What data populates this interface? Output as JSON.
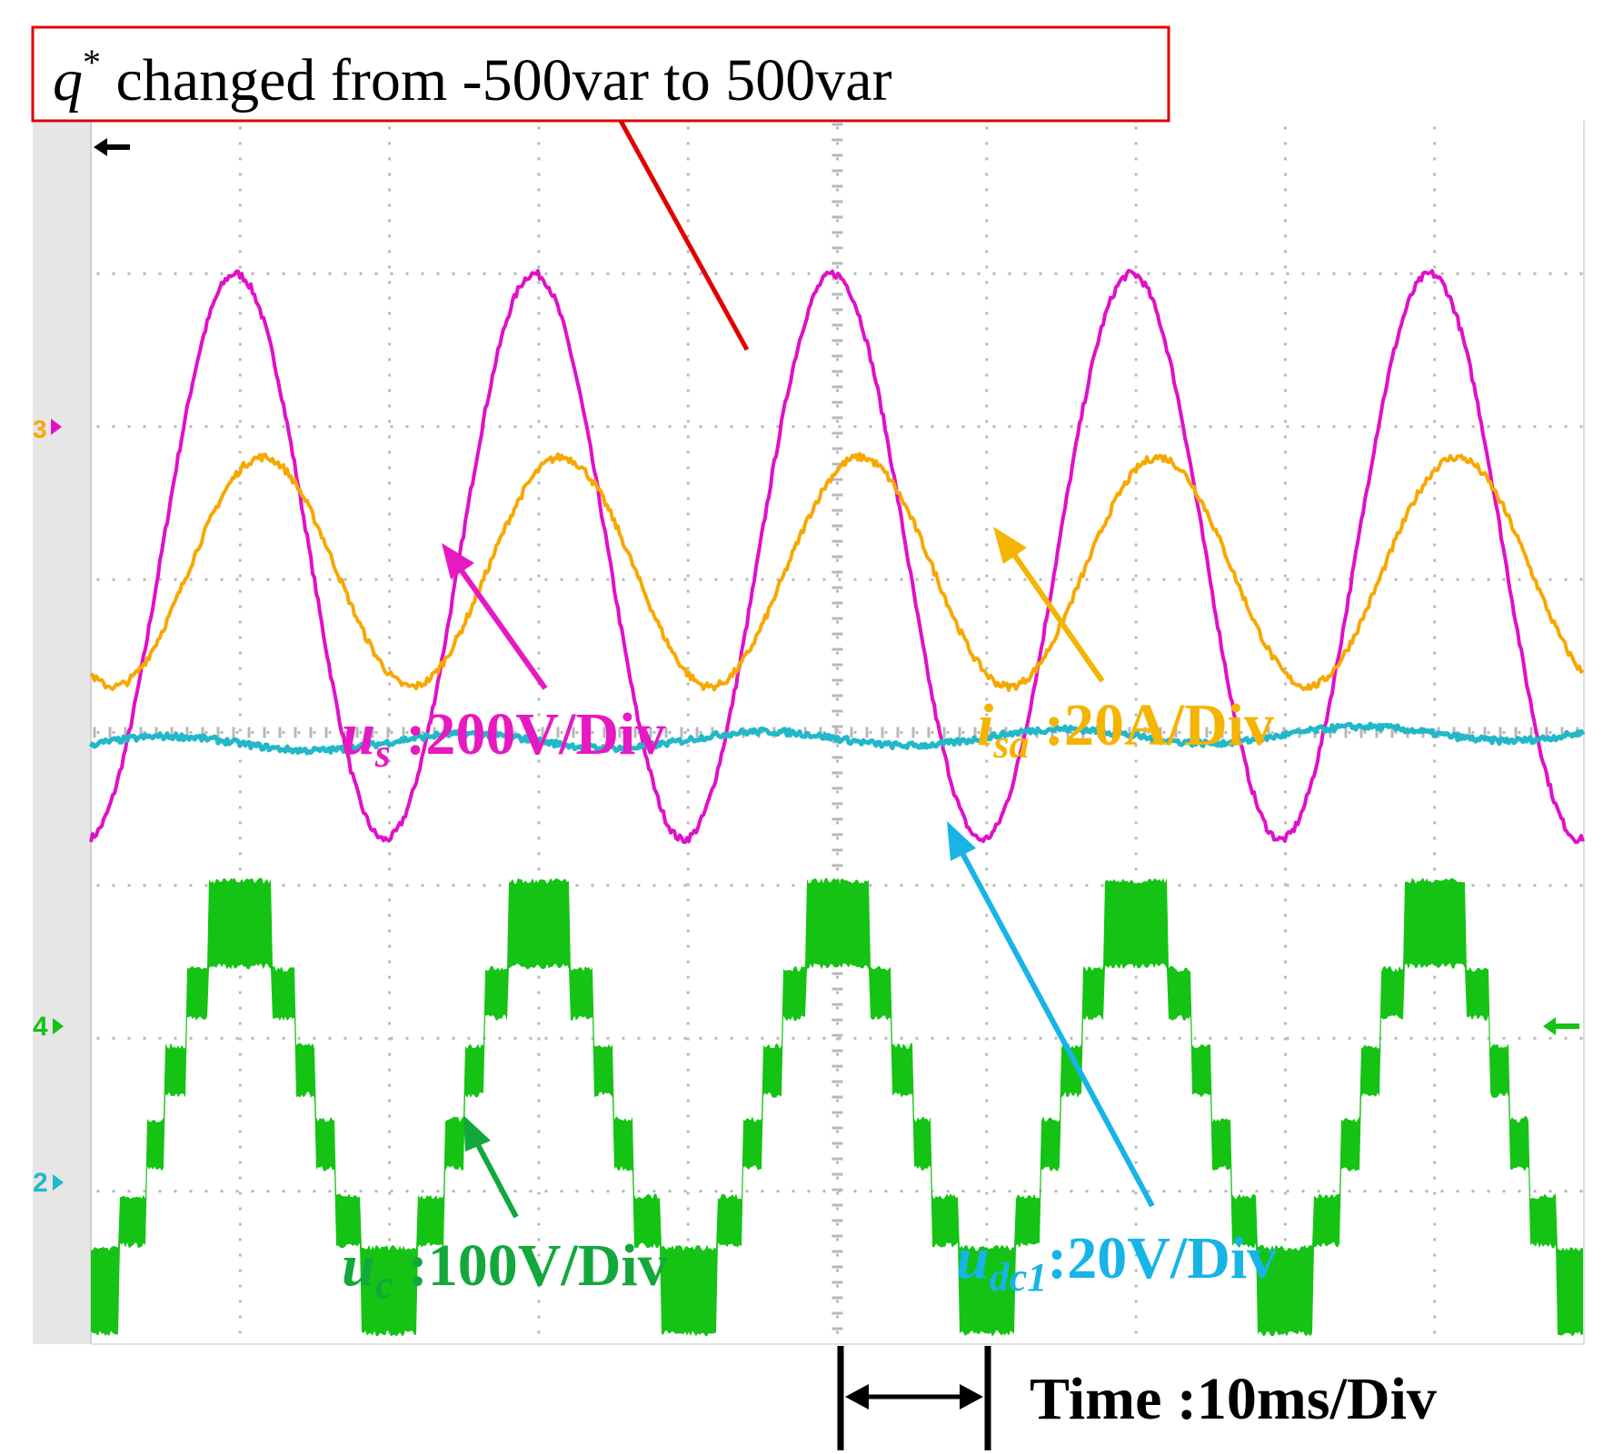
{
  "annotation": {
    "symbol": "q",
    "superscript": "*",
    "text": " changed from -500var to 500var"
  },
  "channel_markers": {
    "ch3": "3",
    "ch4": "4",
    "ch2": "2"
  },
  "time_scale": {
    "text": "Time :10ms/Div"
  },
  "colors": {
    "us": "#e010c8",
    "isa": "#f7a800",
    "udc1": "#22b8c8",
    "uc": "#14c314",
    "us_label": "#e619c3",
    "isa_label": "#f5b400",
    "udc1_label": "#17b4e6",
    "uc_label": "#12a83c",
    "grid_dots": "#b8b8b8",
    "annotation_box": "#e00000"
  },
  "chart_data": {
    "type": "line",
    "title": "",
    "xlabel": "Time :10ms/Div",
    "ylabel": "",
    "grid": true,
    "x_divisions": 10,
    "y_divisions": 8,
    "x_unit": "ms",
    "x_range": [
      0,
      100
    ],
    "fundamental_frequency_hz": 50,
    "series": [
      {
        "key": "us",
        "name_symbol": "u",
        "name_subscript": "s",
        "scale_label": " :200V/Div",
        "amplitude_div": 1.85,
        "offset_div": 1.15,
        "phase_peak_ms": 9.7,
        "shape": "sine"
      },
      {
        "key": "isa",
        "name_symbol": "i",
        "name_subscript": "sa",
        "scale_label": " :20A/Div",
        "amplitude_div": 0.75,
        "offset_div": 1.05,
        "phase_peak_ms": 11.5,
        "shape": "sine"
      },
      {
        "key": "udc1",
        "name_symbol": "u",
        "name_subscript": "dc1",
        "scale_label": ":20V/Div",
        "amplitude_div": 0.05,
        "offset_div": -0.08,
        "phase_peak_ms": 5,
        "shape": "flat"
      },
      {
        "key": "uc",
        "name_symbol": "u",
        "name_subscript": "c",
        "scale_label": " :100V/Div",
        "amplitude_div": 1.2,
        "offset_div": -2.45,
        "phase_peak_ms": 10,
        "shape": "staircase"
      }
    ]
  }
}
